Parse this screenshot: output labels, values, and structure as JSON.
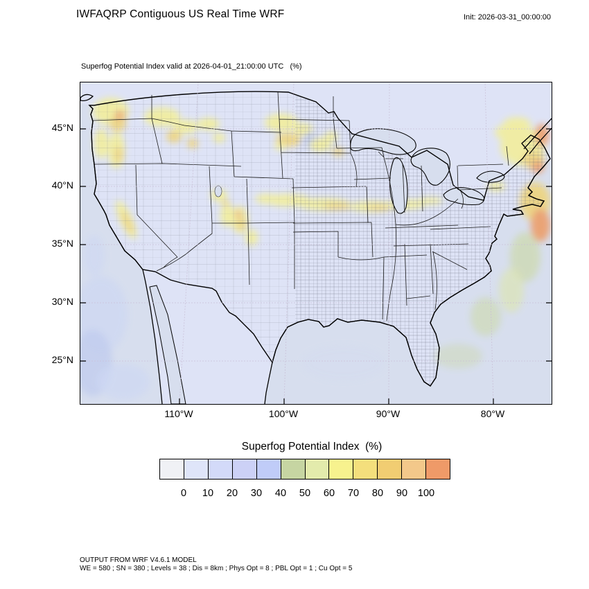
{
  "colors": {
    "land": "#dee3f6",
    "ocean": "#d7deee",
    "cyellow": "#f2ee9c",
    "cgold": "#eed47e",
    "corange": "#ec9e6a",
    "cgreen": "#ccd8a4",
    "cblue": "#b9c6f0",
    "cpale": "#cdd7f3"
  },
  "header": {
    "title": "IWFAQRP Contiguous US Real Time WRF",
    "init": "Init: 2026-03-31_00:00:00"
  },
  "map": {
    "subtitle": "Superfog Potential Index valid at 2026-04-01_21:00:00 UTC   (%)",
    "lat_ticks": [
      "45°N",
      "40°N",
      "35°N",
      "30°N",
      "25°N"
    ],
    "lon_ticks": [
      "110°W",
      "100°W",
      "90°W",
      "80°W"
    ]
  },
  "legend": {
    "title": "Superfog Potential Index  (%)",
    "tick_labels": [
      "0",
      "10",
      "20",
      "30",
      "40",
      "50",
      "60",
      "70",
      "80",
      "90",
      "100"
    ],
    "colors": [
      "#f0f1f5",
      "#dfe5f9",
      "#d3daf9",
      "#ccd1f6",
      "#c0ccf8",
      "#c6d5a2",
      "#e3ebac",
      "#f7f28e",
      "#f4df7c",
      "#f1cd72",
      "#f3c88a",
      "#ef9a68"
    ]
  },
  "footer": {
    "line1": "OUTPUT FROM WRF V4.6.1 MODEL",
    "line2": "WE = 580 ; SN = 380 ; Levels = 38 ; Dis = 8km ; Phys Opt = 8 ; PBL Opt = 1 ; Cu Opt = 5"
  }
}
